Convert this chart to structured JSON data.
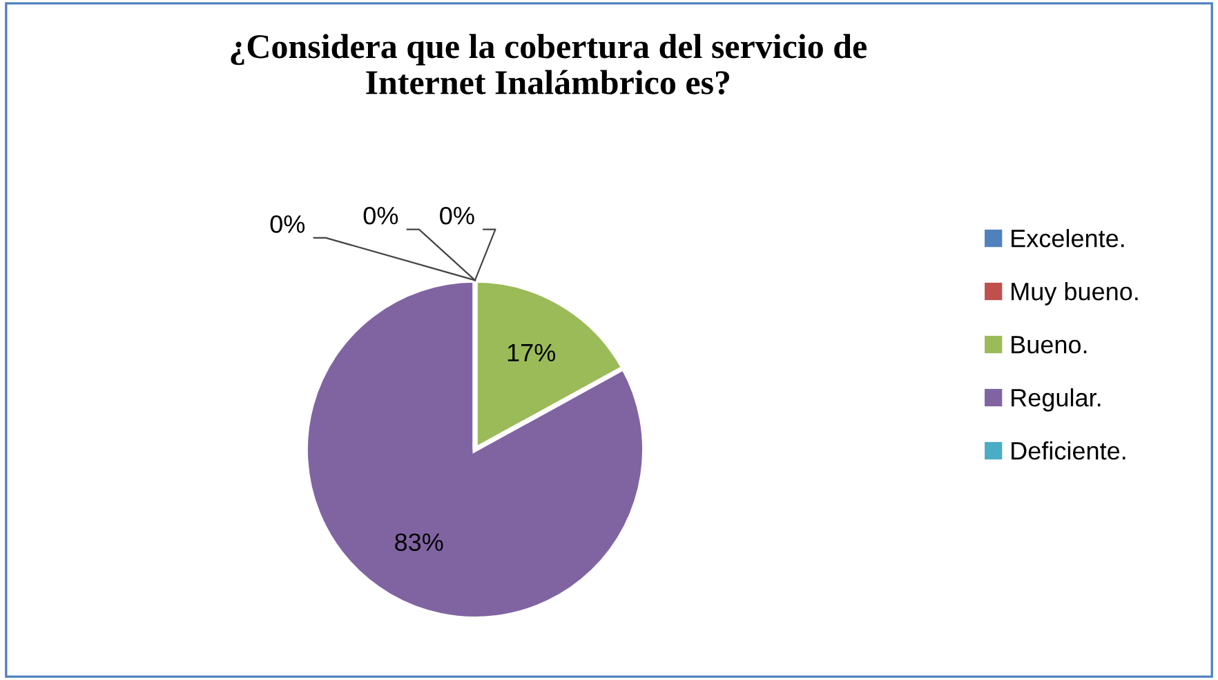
{
  "chart_data": {
    "type": "pie",
    "title": "¿Considera que la cobertura del servicio de\nInternet Inalámbrico es?",
    "categories": [
      "Excelente.",
      "Muy bueno.",
      "Bueno.",
      "Regular.",
      "Deficiente."
    ],
    "values": [
      0,
      0,
      17,
      83,
      0
    ],
    "value_labels": [
      "0%",
      "0%",
      "17%",
      "83%",
      "0%"
    ],
    "colors": [
      "#4f81bd",
      "#c0504d",
      "#9bbb59",
      "#8064a2",
      "#4bacc6"
    ],
    "legend": "right"
  }
}
